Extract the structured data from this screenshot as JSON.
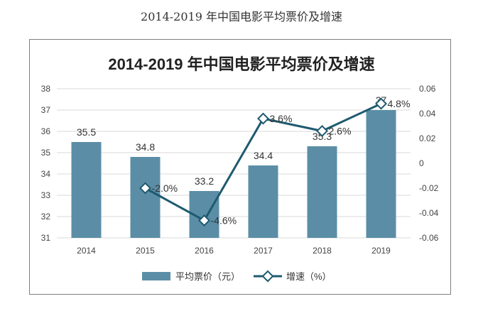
{
  "caption": "2014-2019 年中国电影平均票价及增速",
  "chart_data": {
    "type": "bar",
    "title": "2014-2019 年中国电影平均票价及增速",
    "categories": [
      "2014",
      "2015",
      "2016",
      "2017",
      "2018",
      "2019"
    ],
    "series": [
      {
        "name": "平均票价（元）",
        "type": "bar",
        "axis": "left",
        "values": [
          35.5,
          34.8,
          33.2,
          34.4,
          35.3,
          37
        ],
        "data_labels": [
          "35.5",
          "34.8",
          "33.2",
          "34.4",
          "35.3",
          "37"
        ],
        "color": "#5b8ea6"
      },
      {
        "name": "增速（%）",
        "type": "line",
        "axis": "right",
        "points": [
          {
            "category": "2015",
            "value": -0.02,
            "label": "-2.0%"
          },
          {
            "category": "2016",
            "value": -0.046,
            "label": "-4.6%"
          },
          {
            "category": "2017",
            "value": 0.036,
            "label": "3.6%"
          },
          {
            "category": "2018",
            "value": 0.026,
            "label": "2.6%"
          },
          {
            "category": "2019",
            "value": 0.048,
            "label": "4.8%"
          }
        ],
        "color": "#1f5a70"
      }
    ],
    "y_left": {
      "min": 31,
      "max": 38,
      "ticks": [
        "31",
        "32",
        "33",
        "34",
        "35",
        "36",
        "37",
        "38"
      ]
    },
    "y_right": {
      "min": -0.06,
      "max": 0.06,
      "ticks": [
        "-0.06",
        "-0.04",
        "-0.02",
        "0",
        "0.02",
        "0.04",
        "0.06"
      ]
    },
    "grid": true,
    "legend_position": "bottom"
  }
}
